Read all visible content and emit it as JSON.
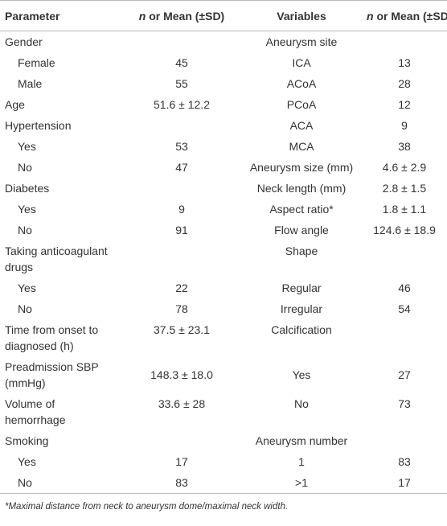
{
  "table": {
    "header": [
      "Parameter",
      {
        "italic": "n",
        "text": " or Mean (±SD)"
      },
      "Variables",
      {
        "italic": "n",
        "text": " or Mean (±SD)"
      }
    ],
    "rows": [
      {
        "parameter": "Gender",
        "variable": "Aneurysm site"
      },
      {
        "parameter": "Female",
        "value": "45",
        "variable": "ICA",
        "variable_value": "13"
      },
      {
        "parameter": "Male",
        "value": "55",
        "variable": "ACoA",
        "variable_value": "28"
      },
      {
        "parameter": "Age",
        "value": "51.6 ± 12.2",
        "variable": "PCoA",
        "variable_value": "12"
      },
      {
        "parameter": "Hypertension",
        "variable": "ACA",
        "variable_value": "9"
      },
      {
        "parameter": "Yes",
        "value": "53",
        "variable": "MCA",
        "variable_value": "38"
      },
      {
        "parameter": "No",
        "value": "47",
        "variable": "Aneurysm size (mm)",
        "variable_value": "4.6 ± 2.9"
      },
      {
        "parameter": "Diabetes",
        "variable": "Neck length (mm)",
        "variable_value": "2.8 ± 1.5"
      },
      {
        "parameter": "Yes",
        "value": "9",
        "variable": "Aspect ratio*",
        "variable_value": "1.8 ± 1.1"
      },
      {
        "parameter": "No",
        "value": "91",
        "variable": "Flow angle",
        "variable_value": "124.6 ± 18.9"
      },
      {
        "parameter": "Taking anticoagulant drugs",
        "variable": "Shape"
      },
      {
        "parameter": "Yes",
        "value": "22",
        "variable": "Regular",
        "variable_value": "46"
      },
      {
        "parameter": "No",
        "value": "78",
        "variable": "Irregular",
        "variable_value": "54"
      },
      {
        "parameter": "Time from onset to diagnosed (h)",
        "value": "37.5 ± 23.1",
        "variable": "Calcification"
      },
      {
        "parameter": "Preadmission SBP (mmHg)",
        "value": "148.3 ± 18.0",
        "variable": "Yes",
        "variable_value": "27"
      },
      {
        "parameter": "Volume of hemorrhage",
        "value": "33.6 ± 28",
        "variable": "No",
        "variable_value": "73"
      },
      {
        "parameter": "Smoking",
        "variable": "Aneurysm number"
      },
      {
        "parameter": "Yes",
        "value": "17",
        "variable": "1",
        "variable_value": "83"
      },
      {
        "parameter": "No",
        "value": "83",
        "variable": ">1",
        "variable_value": "17"
      }
    ],
    "footnote": "*Maximal distance from neck to aneurysm dome/maximal neck width."
  }
}
